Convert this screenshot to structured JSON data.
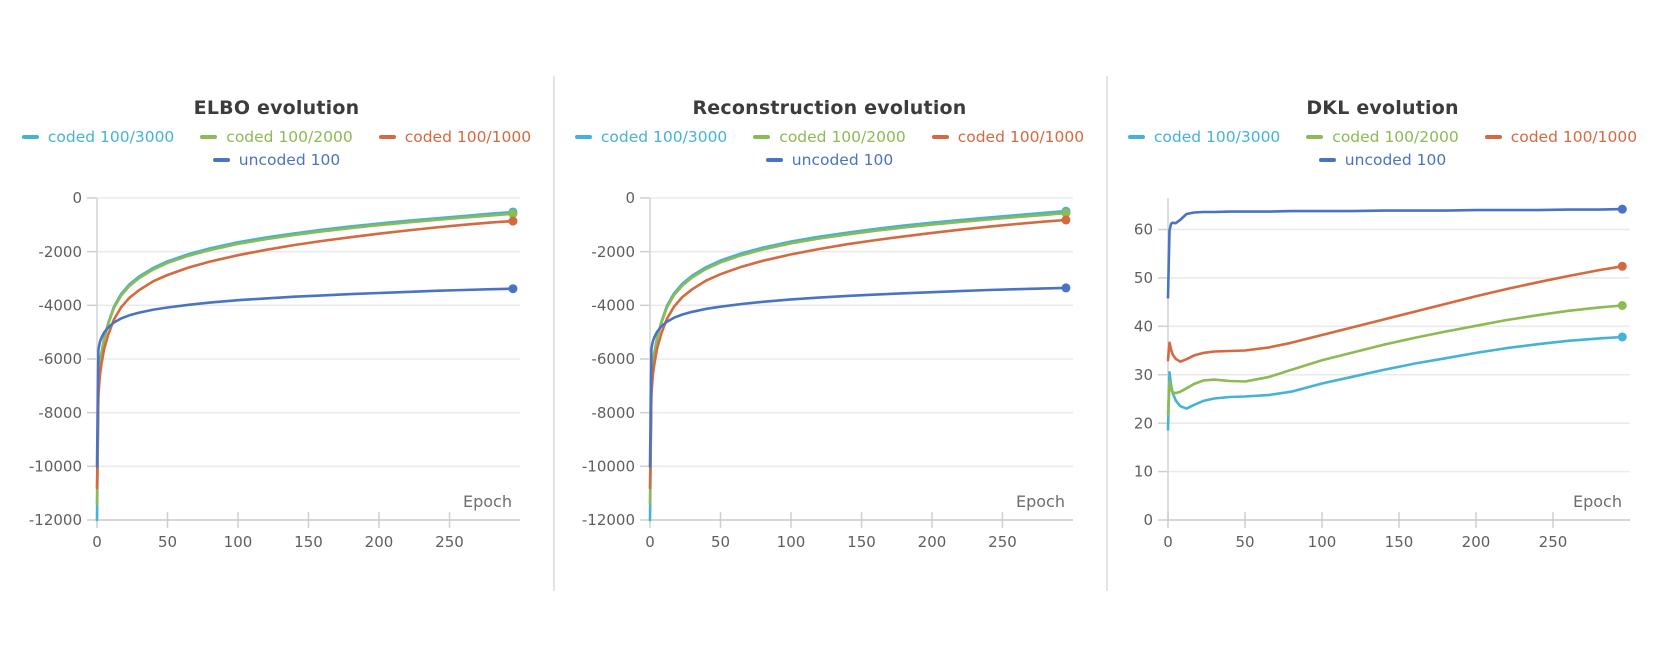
{
  "chart_data": [
    {
      "type": "line",
      "title": "ELBO evolution",
      "xlabel": "Epoch",
      "xlim": [
        0,
        300
      ],
      "ylim": [
        -12000,
        0
      ],
      "xticks": [
        0,
        50,
        100,
        150,
        200,
        250
      ],
      "yticks": [
        -12000,
        -10000,
        -8000,
        -6000,
        -4000,
        -2000,
        0
      ],
      "grid": "horizontal",
      "legend_position": "top",
      "x": [
        0,
        1,
        2,
        3,
        5,
        8,
        12,
        17,
        23,
        30,
        40,
        50,
        65,
        80,
        100,
        120,
        140,
        160,
        180,
        200,
        220,
        240,
        260,
        280,
        295
      ],
      "series": [
        {
          "name": "coded 100/3000",
          "color": "#45B3D6",
          "values": [
            -12000,
            -7050,
            -6250,
            -5850,
            -5250,
            -4650,
            -4050,
            -3580,
            -3220,
            -2920,
            -2600,
            -2360,
            -2090,
            -1880,
            -1650,
            -1470,
            -1320,
            -1180,
            -1060,
            -950,
            -850,
            -760,
            -670,
            -580,
            -520
          ]
        },
        {
          "name": "coded 100/2000",
          "color": "#8CBA53",
          "values": [
            -11400,
            -6950,
            -6200,
            -5820,
            -5260,
            -4680,
            -4100,
            -3640,
            -3280,
            -2980,
            -2660,
            -2420,
            -2150,
            -1940,
            -1710,
            -1530,
            -1380,
            -1240,
            -1120,
            -1010,
            -910,
            -820,
            -730,
            -650,
            -590
          ]
        },
        {
          "name": "coded 100/1000",
          "color": "#D5693F",
          "values": [
            -10800,
            -7350,
            -6650,
            -6250,
            -5650,
            -5080,
            -4530,
            -4080,
            -3720,
            -3430,
            -3100,
            -2870,
            -2590,
            -2370,
            -2130,
            -1930,
            -1750,
            -1600,
            -1460,
            -1330,
            -1210,
            -1100,
            -1000,
            -910,
            -860
          ]
        },
        {
          "name": "uncoded 100",
          "color": "#4A73C4",
          "values": [
            -10000,
            -5650,
            -5380,
            -5230,
            -5020,
            -4820,
            -4640,
            -4490,
            -4370,
            -4270,
            -4160,
            -4080,
            -3980,
            -3900,
            -3810,
            -3740,
            -3680,
            -3630,
            -3580,
            -3540,
            -3500,
            -3460,
            -3430,
            -3400,
            -3380
          ]
        }
      ]
    },
    {
      "type": "line",
      "title": "Reconstruction evolution",
      "xlabel": "Epoch",
      "xlim": [
        0,
        300
      ],
      "ylim": [
        -12000,
        0
      ],
      "xticks": [
        0,
        50,
        100,
        150,
        200,
        250
      ],
      "yticks": [
        -12000,
        -10000,
        -8000,
        -6000,
        -4000,
        -2000,
        0
      ],
      "grid": "horizontal",
      "legend_position": "top",
      "x": [
        0,
        1,
        2,
        3,
        5,
        8,
        12,
        17,
        23,
        30,
        40,
        50,
        65,
        80,
        100,
        120,
        140,
        160,
        180,
        200,
        220,
        240,
        260,
        280,
        295
      ],
      "series": [
        {
          "name": "coded 100/3000",
          "color": "#45B3D6",
          "values": [
            -12000,
            -7020,
            -6220,
            -5820,
            -5220,
            -4620,
            -4020,
            -3550,
            -3190,
            -2890,
            -2570,
            -2330,
            -2060,
            -1850,
            -1620,
            -1440,
            -1290,
            -1150,
            -1030,
            -920,
            -820,
            -730,
            -640,
            -550,
            -490
          ]
        },
        {
          "name": "coded 100/2000",
          "color": "#8CBA53",
          "values": [
            -11400,
            -6930,
            -6180,
            -5800,
            -5240,
            -4660,
            -4080,
            -3620,
            -3260,
            -2960,
            -2640,
            -2400,
            -2130,
            -1920,
            -1690,
            -1510,
            -1360,
            -1220,
            -1100,
            -990,
            -890,
            -800,
            -710,
            -630,
            -560
          ]
        },
        {
          "name": "coded 100/1000",
          "color": "#D5693F",
          "values": [
            -10800,
            -7320,
            -6620,
            -6220,
            -5620,
            -5050,
            -4500,
            -4050,
            -3690,
            -3400,
            -3070,
            -2840,
            -2560,
            -2340,
            -2100,
            -1900,
            -1720,
            -1570,
            -1430,
            -1300,
            -1180,
            -1070,
            -970,
            -880,
            -820
          ]
        },
        {
          "name": "uncoded 100",
          "color": "#4A73C4",
          "values": [
            -10000,
            -5620,
            -5350,
            -5200,
            -4990,
            -4790,
            -4610,
            -4460,
            -4340,
            -4240,
            -4130,
            -4050,
            -3950,
            -3870,
            -3780,
            -3710,
            -3650,
            -3600,
            -3550,
            -3510,
            -3470,
            -3430,
            -3400,
            -3370,
            -3350
          ]
        }
      ]
    },
    {
      "type": "line",
      "title": "DKL evolution",
      "xlabel": "Epoch",
      "xlim": [
        0,
        300
      ],
      "ylim": [
        0,
        66.5
      ],
      "xticks": [
        0,
        50,
        100,
        150,
        200,
        250
      ],
      "yticks": [
        0,
        10,
        20,
        30,
        40,
        50,
        60
      ],
      "grid": "horizontal",
      "legend_position": "top",
      "x": [
        0,
        1,
        2,
        3,
        5,
        8,
        12,
        17,
        23,
        30,
        40,
        50,
        65,
        80,
        100,
        120,
        140,
        160,
        180,
        200,
        220,
        240,
        260,
        280,
        295
      ],
      "series": [
        {
          "name": "coded 100/3000",
          "color": "#45B3D6",
          "values": [
            18.7,
            30.5,
            27.8,
            26.3,
            24.7,
            23.5,
            23.0,
            23.8,
            24.6,
            25.1,
            25.4,
            25.5,
            25.8,
            26.5,
            28.2,
            29.6,
            31.0,
            32.3,
            33.4,
            34.5,
            35.5,
            36.3,
            37.0,
            37.5,
            37.8
          ]
        },
        {
          "name": "coded 100/2000",
          "color": "#8CBA53",
          "values": [
            21.8,
            28.6,
            27.0,
            26.4,
            26.2,
            26.5,
            27.2,
            28.1,
            28.8,
            29.0,
            28.7,
            28.6,
            29.5,
            31.0,
            33.0,
            34.6,
            36.2,
            37.6,
            38.9,
            40.1,
            41.3,
            42.3,
            43.2,
            43.9,
            44.3
          ]
        },
        {
          "name": "coded 100/1000",
          "color": "#D5693F",
          "values": [
            33.0,
            36.6,
            35.2,
            34.2,
            33.3,
            32.7,
            33.2,
            34.0,
            34.5,
            34.8,
            34.9,
            35.0,
            35.6,
            36.6,
            38.2,
            39.8,
            41.4,
            43.0,
            44.6,
            46.2,
            47.7,
            49.1,
            50.4,
            51.6,
            52.4
          ]
        },
        {
          "name": "uncoded 100",
          "color": "#4A73C4",
          "values": [
            46.0,
            59.8,
            61.2,
            61.4,
            61.3,
            62.0,
            63.2,
            63.5,
            63.6,
            63.6,
            63.7,
            63.7,
            63.7,
            63.8,
            63.8,
            63.8,
            63.9,
            63.9,
            63.9,
            64.0,
            64.0,
            64.0,
            64.1,
            64.1,
            64.2
          ]
        }
      ]
    }
  ],
  "style": {
    "grid_color": "#ebebeb",
    "axis_color": "#d6d6d6",
    "tick_color": "#cfcfcf",
    "tick_label_color": "#5f5f5f",
    "axis_annotation_color": "#6e6e6e",
    "title_color": "#3c3c3c"
  }
}
